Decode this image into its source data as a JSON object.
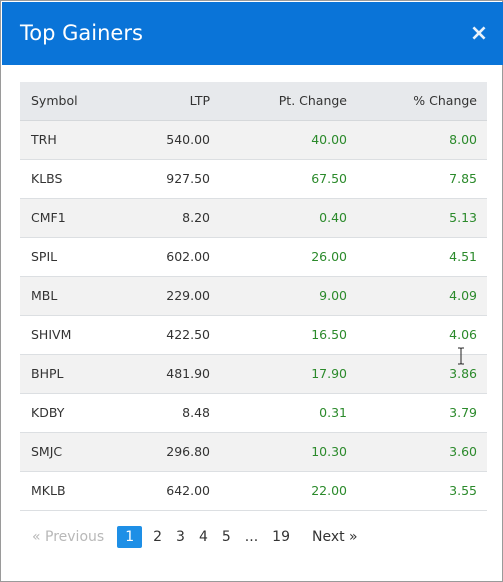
{
  "modal": {
    "title": "Top Gainers",
    "close_label": "×"
  },
  "table": {
    "headers": [
      "Symbol",
      "LTP",
      "Pt. Change",
      "% Change"
    ],
    "rows": [
      {
        "symbol": "TRH",
        "ltp": "540.00",
        "pt_change": "40.00",
        "pct_change": "8.00"
      },
      {
        "symbol": "KLBS",
        "ltp": "927.50",
        "pt_change": "67.50",
        "pct_change": "7.85"
      },
      {
        "symbol": "CMF1",
        "ltp": "8.20",
        "pt_change": "0.40",
        "pct_change": "5.13"
      },
      {
        "symbol": "SPIL",
        "ltp": "602.00",
        "pt_change": "26.00",
        "pct_change": "4.51"
      },
      {
        "symbol": "MBL",
        "ltp": "229.00",
        "pt_change": "9.00",
        "pct_change": "4.09"
      },
      {
        "symbol": "SHIVM",
        "ltp": "422.50",
        "pt_change": "16.50",
        "pct_change": "4.06"
      },
      {
        "symbol": "BHPL",
        "ltp": "481.90",
        "pt_change": "17.90",
        "pct_change": "3.86"
      },
      {
        "symbol": "KDBY",
        "ltp": "8.48",
        "pt_change": "0.31",
        "pct_change": "3.79"
      },
      {
        "symbol": "SMJC",
        "ltp": "296.80",
        "pt_change": "10.30",
        "pct_change": "3.60"
      },
      {
        "symbol": "MKLB",
        "ltp": "642.00",
        "pt_change": "22.00",
        "pct_change": "3.55"
      }
    ]
  },
  "pagination": {
    "previous_label": "«  Previous",
    "pages": [
      "1",
      "2",
      "3",
      "4",
      "5",
      "...",
      "19"
    ],
    "active_page": "1",
    "next_label": "Next  »"
  },
  "colors": {
    "header_bg": "#0a74d8",
    "positive": "#2b8a2b",
    "active_page": "#1e8fe6"
  }
}
